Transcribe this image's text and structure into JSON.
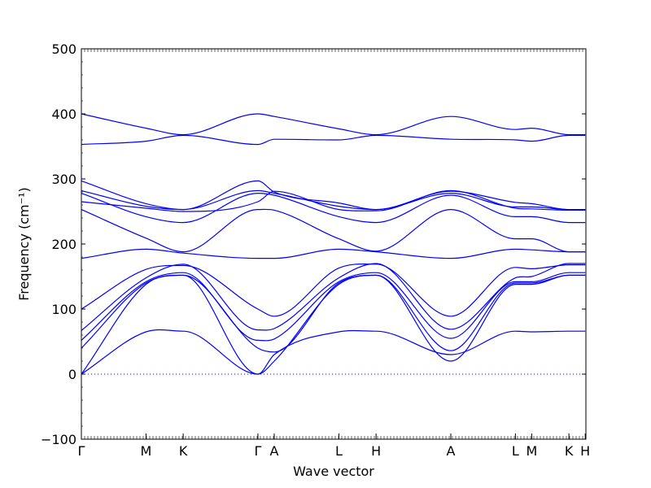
{
  "chart_data": {
    "type": "line",
    "xlabel": "Wave vector",
    "ylabel": "Frequency (cm⁻¹)",
    "ylim": [
      -100,
      500
    ],
    "y_ticks": [
      -100,
      0,
      100,
      200,
      300,
      400,
      500
    ],
    "y_tick_labels": [
      "−100",
      "0",
      "100",
      "200",
      "300",
      "400",
      "500"
    ],
    "x_range": [
      0,
      15.46
    ],
    "x_ticks": [
      {
        "label": "Γ",
        "x": 0
      },
      {
        "label": "M",
        "x": 1.98
      },
      {
        "label": "K",
        "x": 3.12
      },
      {
        "label": "Γ",
        "x": 5.41
      },
      {
        "label": "A",
        "x": 5.91
      },
      {
        "label": "L",
        "x": 7.89
      },
      {
        "label": "H",
        "x": 9.03
      },
      {
        "label": "A",
        "x": 11.32
      },
      {
        "label": "L",
        "x": 13.3
      },
      {
        "label": "M",
        "x": 13.8
      },
      {
        "label": "K",
        "x": 14.94
      },
      {
        "label": "H",
        "x": 15.44
      }
    ],
    "zero_line": true,
    "grid": false,
    "line_color": "#0000ff",
    "series": [
      {
        "points": [
          [
            0,
            400
          ],
          [
            1.98,
            378
          ],
          [
            3.12,
            368
          ],
          [
            5.41,
            400
          ],
          [
            5.91,
            396
          ],
          [
            7.89,
            377
          ],
          [
            9.03,
            368
          ],
          [
            11.32,
            396
          ],
          [
            13.3,
            376
          ],
          [
            13.8,
            378
          ],
          [
            14.94,
            368
          ],
          [
            15.44,
            368
          ]
        ]
      },
      {
        "points": [
          [
            0,
            353
          ],
          [
            1.98,
            358
          ],
          [
            3.12,
            367
          ],
          [
            5.41,
            353
          ],
          [
            5.91,
            361
          ],
          [
            7.89,
            360
          ],
          [
            9.03,
            367
          ],
          [
            11.32,
            361
          ],
          [
            13.3,
            360
          ],
          [
            13.8,
            358
          ],
          [
            14.94,
            367
          ],
          [
            15.44,
            367
          ]
        ]
      },
      {
        "points": [
          [
            0,
            297
          ],
          [
            1.98,
            262
          ],
          [
            3.12,
            253
          ],
          [
            5.41,
            297
          ],
          [
            5.91,
            280
          ],
          [
            7.89,
            263
          ],
          [
            9.03,
            253
          ],
          [
            11.32,
            281
          ],
          [
            13.3,
            264
          ],
          [
            13.8,
            262
          ],
          [
            14.94,
            253
          ],
          [
            15.44,
            253
          ]
        ]
      },
      {
        "points": [
          [
            0,
            282
          ],
          [
            1.98,
            258
          ],
          [
            3.12,
            253
          ],
          [
            5.41,
            282
          ],
          [
            5.91,
            278
          ],
          [
            7.89,
            258
          ],
          [
            9.03,
            253
          ],
          [
            11.32,
            278
          ],
          [
            13.3,
            257
          ],
          [
            13.8,
            257
          ],
          [
            14.94,
            253
          ],
          [
            15.44,
            253
          ]
        ]
      },
      {
        "points": [
          [
            0,
            278
          ],
          [
            1.98,
            242
          ],
          [
            3.12,
            233
          ],
          [
            5.41,
            278
          ],
          [
            5.91,
            275
          ],
          [
            7.89,
            242
          ],
          [
            9.03,
            233
          ],
          [
            11.32,
            275
          ],
          [
            13.3,
            242
          ],
          [
            13.8,
            242
          ],
          [
            14.94,
            233
          ],
          [
            15.44,
            233
          ]
        ]
      },
      {
        "points": [
          [
            0,
            265
          ],
          [
            1.98,
            255
          ],
          [
            3.12,
            250
          ],
          [
            5.41,
            265
          ],
          [
            5.91,
            281
          ],
          [
            7.89,
            253
          ],
          [
            9.03,
            251
          ],
          [
            11.32,
            282
          ],
          [
            13.3,
            255
          ],
          [
            13.8,
            254
          ],
          [
            14.94,
            252
          ],
          [
            15.44,
            252
          ]
        ]
      },
      {
        "points": [
          [
            0,
            253
          ],
          [
            1.98,
            209
          ],
          [
            3.12,
            188
          ],
          [
            5.41,
            253
          ],
          [
            5.91,
            252
          ],
          [
            7.89,
            208
          ],
          [
            9.03,
            189
          ],
          [
            11.32,
            253
          ],
          [
            13.3,
            208
          ],
          [
            13.8,
            208
          ],
          [
            14.94,
            188
          ],
          [
            15.44,
            188
          ]
        ]
      },
      {
        "points": [
          [
            0,
            178
          ],
          [
            1.98,
            192
          ],
          [
            3.12,
            186
          ],
          [
            5.41,
            178
          ],
          [
            5.91,
            178
          ],
          [
            7.89,
            192
          ],
          [
            9.03,
            188
          ],
          [
            11.32,
            178
          ],
          [
            13.3,
            192
          ],
          [
            13.8,
            191
          ],
          [
            14.94,
            188
          ],
          [
            15.44,
            188
          ]
        ]
      },
      {
        "points": [
          [
            0,
            100
          ],
          [
            1.98,
            161
          ],
          [
            3.12,
            167
          ],
          [
            5.41,
            100
          ],
          [
            5.91,
            89
          ],
          [
            7.89,
            163
          ],
          [
            9.03,
            169
          ],
          [
            11.32,
            89
          ],
          [
            13.3,
            164
          ],
          [
            13.8,
            162
          ],
          [
            14.94,
            168
          ],
          [
            15.44,
            168
          ]
        ]
      },
      {
        "points": [
          [
            0,
            67
          ],
          [
            1.98,
            148
          ],
          [
            3.12,
            169
          ],
          [
            5.41,
            68
          ],
          [
            5.91,
            70
          ],
          [
            7.89,
            148
          ],
          [
            9.03,
            170
          ],
          [
            11.32,
            69
          ],
          [
            13.3,
            148
          ],
          [
            13.8,
            150
          ],
          [
            14.94,
            170
          ],
          [
            15.44,
            170
          ]
        ]
      },
      {
        "points": [
          [
            0,
            52
          ],
          [
            1.98,
            142
          ],
          [
            3.12,
            156
          ],
          [
            5.41,
            52
          ],
          [
            5.91,
            54
          ],
          [
            7.89,
            142
          ],
          [
            9.03,
            156
          ],
          [
            11.32,
            55
          ],
          [
            13.3,
            142
          ],
          [
            13.8,
            142
          ],
          [
            14.94,
            156
          ],
          [
            15.44,
            156
          ]
        ]
      },
      {
        "points": [
          [
            0,
            40
          ],
          [
            1.98,
            140
          ],
          [
            3.12,
            152
          ],
          [
            5.41,
            40
          ],
          [
            5.91,
            34
          ],
          [
            7.89,
            140
          ],
          [
            9.03,
            152
          ],
          [
            11.32,
            36
          ],
          [
            13.3,
            140
          ],
          [
            13.8,
            140
          ],
          [
            14.94,
            152
          ],
          [
            15.44,
            152
          ]
        ]
      },
      {
        "points": [
          [
            0,
            0
          ],
          [
            1.98,
            138
          ],
          [
            3.12,
            152
          ],
          [
            5.41,
            0
          ],
          [
            5.91,
            20
          ],
          [
            7.89,
            138
          ],
          [
            9.03,
            152
          ],
          [
            11.32,
            20
          ],
          [
            13.3,
            138
          ],
          [
            13.8,
            138
          ],
          [
            14.94,
            152
          ],
          [
            15.44,
            152
          ]
        ]
      },
      {
        "points": [
          [
            0,
            0
          ],
          [
            1.98,
            65
          ],
          [
            3.12,
            66
          ],
          [
            5.41,
            0
          ],
          [
            5.91,
            30
          ],
          [
            7.89,
            65
          ],
          [
            9.03,
            66
          ],
          [
            11.32,
            30
          ],
          [
            13.3,
            66
          ],
          [
            13.8,
            65
          ],
          [
            14.94,
            66
          ],
          [
            15.44,
            66
          ]
        ]
      }
    ]
  }
}
